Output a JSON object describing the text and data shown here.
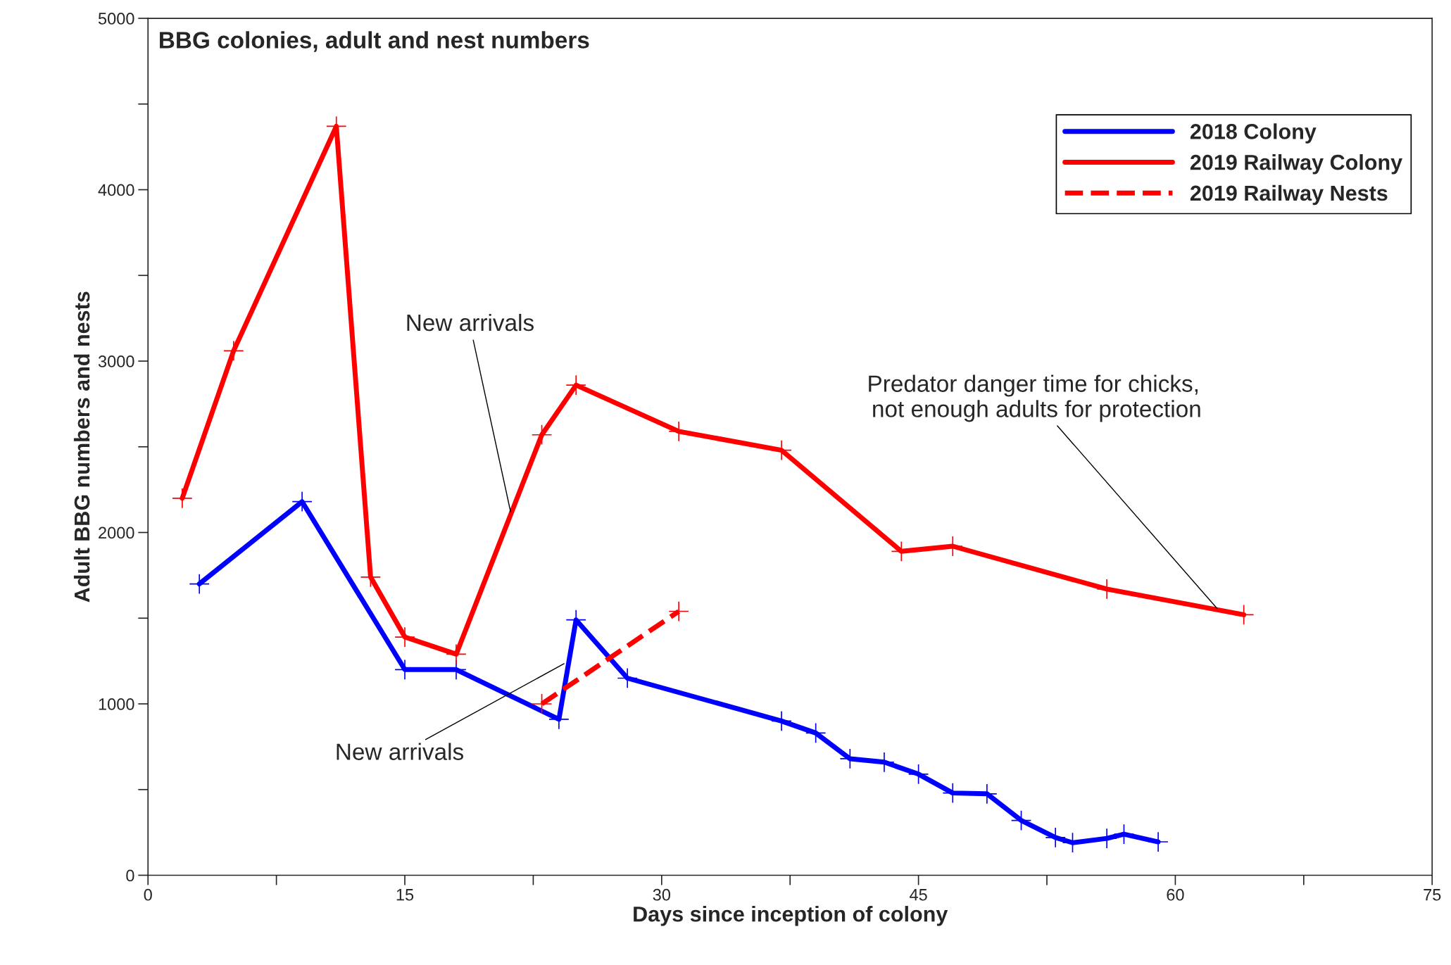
{
  "chart_data": {
    "type": "line",
    "title": "BBG colonies, adult and nest numbers",
    "xlabel": "Days since inception of colony",
    "ylabel": "Adult BBG numbers and nests",
    "xlim": [
      0,
      75
    ],
    "xticks": [
      0,
      15,
      30,
      45,
      60,
      75
    ],
    "ylim": [
      0,
      5000
    ],
    "yticks": [
      0,
      1000,
      2000,
      3000,
      4000,
      5000
    ],
    "grid": false,
    "legend": "top right",
    "marker": "cross",
    "series": [
      {
        "name": "2018 Colony",
        "color": "#0000ff",
        "line_style": "solid",
        "x": [
          3,
          9,
          15,
          18,
          24,
          25,
          28,
          37,
          39,
          41,
          43,
          45,
          47,
          49,
          51,
          53,
          54,
          56,
          57,
          59
        ],
        "values": [
          1700,
          2180,
          1200,
          1200,
          910,
          1490,
          1150,
          900,
          830,
          680,
          660,
          590,
          480,
          475,
          320,
          220,
          190,
          215,
          240,
          195
        ]
      },
      {
        "name": "2019 Railway Colony",
        "color": "#ff0000",
        "line_style": "solid",
        "x": [
          2,
          5,
          11,
          13,
          15,
          18,
          23,
          25,
          31,
          37,
          44,
          47,
          56,
          64
        ],
        "values": [
          2200,
          3060,
          4370,
          1740,
          1390,
          1290,
          2570,
          2860,
          2590,
          2480,
          1890,
          1920,
          1670,
          1520
        ]
      },
      {
        "name": "2019 Railway Nests",
        "color": "#ff0000",
        "line_style": "dashed",
        "x": [
          23,
          31
        ],
        "values": [
          1000,
          1540
        ]
      }
    ],
    "annotations": [
      {
        "text": "New arrivals",
        "x": 21.2,
        "y": 2110
      },
      {
        "text": "New arrivals",
        "x": 24.4,
        "y": 1240
      },
      {
        "text": "Predator danger time for chicks,\n not enough adults for protection",
        "x": 62.5,
        "y": 1550
      }
    ]
  }
}
